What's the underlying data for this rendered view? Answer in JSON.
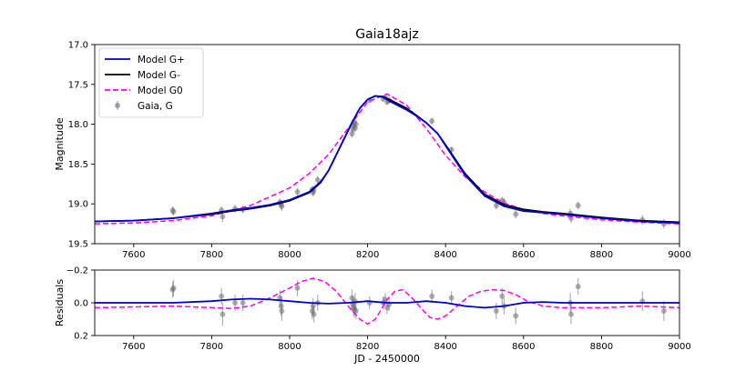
{
  "chart_data": [
    {
      "type": "line",
      "title": "Gaia18ajz",
      "xlabel": "",
      "ylabel": "Magnitude",
      "xlim": [
        7500,
        9000
      ],
      "ylim": [
        19.5,
        17.0
      ],
      "y_inverted": true,
      "x_ticks": [
        "7600",
        "7800",
        "8000",
        "8200",
        "8400",
        "8600",
        "8800",
        "9000"
      ],
      "x_tick_values": [
        7600,
        7800,
        8000,
        8200,
        8400,
        8600,
        8800,
        9000
      ],
      "y_ticks": [
        "17.0",
        "17.5",
        "18.0",
        "18.5",
        "19.0",
        "19.5"
      ],
      "y_tick_values": [
        17.0,
        17.5,
        18.0,
        18.5,
        19.0,
        19.5
      ],
      "legend_position": "top-left",
      "grid": false,
      "series": [
        {
          "name": "Model G+",
          "color": "#0000cc",
          "style": "solid",
          "x": [
            7500,
            7600,
            7700,
            7800,
            7850,
            7900,
            7950,
            8000,
            8050,
            8080,
            8100,
            8120,
            8140,
            8160,
            8180,
            8200,
            8220,
            8240,
            8260,
            8280,
            8300,
            8320,
            8350,
            8380,
            8400,
            8450,
            8500,
            8550,
            8600,
            8650,
            8700,
            8800,
            8900,
            9000
          ],
          "y": [
            19.22,
            19.21,
            19.18,
            19.12,
            19.08,
            19.05,
            19.01,
            18.95,
            18.85,
            18.72,
            18.58,
            18.38,
            18.18,
            17.98,
            17.8,
            17.69,
            17.645,
            17.66,
            17.72,
            17.77,
            17.82,
            17.88,
            17.98,
            18.12,
            18.27,
            18.64,
            18.9,
            19.03,
            19.09,
            19.11,
            19.13,
            19.18,
            19.22,
            19.24
          ]
        },
        {
          "name": "Model G-",
          "color": "#000000",
          "style": "solid",
          "x": [
            7500,
            7600,
            7700,
            7800,
            7850,
            7900,
            7950,
            8000,
            8050,
            8080,
            8100,
            8120,
            8140,
            8160,
            8180,
            8200,
            8220,
            8240,
            8260,
            8280,
            8300,
            8320,
            8350,
            8380,
            8400,
            8450,
            8500,
            8550,
            8600,
            8650,
            8700,
            8800,
            8900,
            9000
          ],
          "y": [
            19.22,
            19.21,
            19.18,
            19.13,
            19.09,
            19.06,
            19.02,
            18.96,
            18.86,
            18.73,
            18.58,
            18.38,
            18.18,
            17.98,
            17.8,
            17.69,
            17.645,
            17.655,
            17.7,
            17.75,
            17.8,
            17.87,
            17.98,
            18.12,
            18.26,
            18.62,
            18.88,
            19.01,
            19.07,
            19.1,
            19.12,
            19.17,
            19.21,
            19.23
          ]
        },
        {
          "name": "Model G0",
          "color": "#ff00ff",
          "style": "dashed",
          "x": [
            7500,
            7600,
            7700,
            7800,
            7900,
            8000,
            8050,
            8100,
            8150,
            8200,
            8250,
            8300,
            8350,
            8400,
            8450,
            8500,
            8550,
            8600,
            8650,
            8700,
            8800,
            8900,
            9000
          ],
          "y": [
            19.25,
            19.24,
            19.21,
            19.15,
            19.02,
            18.8,
            18.62,
            18.38,
            18.05,
            17.72,
            17.62,
            17.76,
            18.05,
            18.39,
            18.66,
            18.85,
            18.99,
            19.07,
            19.12,
            19.15,
            19.2,
            19.23,
            19.25
          ]
        },
        {
          "name": "Gaia, G",
          "type": "scatter",
          "color": "#707070",
          "x": [
            7700,
            7702,
            7825,
            7828,
            7860,
            7880,
            7975,
            7978,
            7980,
            8020,
            8058,
            8060,
            8062,
            8072,
            8160,
            8162,
            8164,
            8166,
            8168,
            8170,
            8205,
            8240,
            8245,
            8250,
            8255,
            8365,
            8415,
            8530,
            8545,
            8550,
            8580,
            8720,
            8722,
            8740,
            8905,
            8960
          ],
          "y": [
            19.08,
            19.1,
            19.08,
            19.16,
            19.06,
            19.07,
            18.98,
            19.01,
            19.03,
            18.85,
            18.82,
            18.86,
            18.83,
            18.7,
            18.12,
            18.06,
            18.02,
            17.98,
            18.05,
            18.0,
            17.7,
            17.68,
            17.66,
            17.72,
            17.7,
            17.96,
            18.32,
            19.02,
            18.96,
            18.98,
            19.13,
            19.12,
            19.18,
            19.02,
            19.2,
            19.25
          ],
          "yerr": [
            0.05,
            0.05,
            0.05,
            0.07,
            0.05,
            0.05,
            0.05,
            0.06,
            0.06,
            0.05,
            0.05,
            0.05,
            0.05,
            0.05,
            0.05,
            0.05,
            0.05,
            0.05,
            0.05,
            0.05,
            0.04,
            0.04,
            0.04,
            0.04,
            0.04,
            0.04,
            0.04,
            0.05,
            0.05,
            0.05,
            0.05,
            0.06,
            0.06,
            0.05,
            0.06,
            0.06
          ]
        }
      ]
    },
    {
      "type": "line",
      "title": "",
      "xlabel": "JD - 2450000",
      "ylabel": "Residuals",
      "xlim": [
        7500,
        9000
      ],
      "ylim": [
        0.2,
        -0.2
      ],
      "y_inverted": true,
      "x_ticks": [
        "7600",
        "7800",
        "8000",
        "8200",
        "8400",
        "8600",
        "8800",
        "9000"
      ],
      "x_tick_values": [
        7600,
        7800,
        8000,
        8200,
        8400,
        8600,
        8800,
        9000
      ],
      "y_ticks": [
        "−0.2",
        "0.0",
        "0.2"
      ],
      "y_tick_values": [
        -0.2,
        0.0,
        0.2
      ],
      "grid": false,
      "series": [
        {
          "name": "Model G+",
          "color": "#0000cc",
          "style": "solid",
          "x": [
            7500,
            7700,
            7800,
            7850,
            7900,
            7950,
            8000,
            8050,
            8100,
            8150,
            8200,
            8250,
            8300,
            8350,
            8400,
            8450,
            8500,
            8550,
            8600,
            8650,
            8700,
            8800,
            9000
          ],
          "y": [
            0.0,
            0.0,
            -0.01,
            -0.02,
            -0.025,
            -0.02,
            -0.01,
            0.0,
            0.005,
            0.0,
            -0.01,
            0.0,
            0.0,
            -0.01,
            0.0,
            0.02,
            0.03,
            0.02,
            0.0,
            -0.005,
            0.0,
            0.0,
            0.0
          ]
        },
        {
          "name": "Model G0",
          "color": "#ff00ff",
          "style": "dashed",
          "x": [
            7500,
            7600,
            7700,
            7800,
            7850,
            7900,
            7950,
            8000,
            8030,
            8060,
            8090,
            8120,
            8150,
            8180,
            8200,
            8220,
            8250,
            8270,
            8290,
            8310,
            8340,
            8360,
            8380,
            8400,
            8430,
            8460,
            8490,
            8520,
            8550,
            8580,
            8610,
            8650,
            8700,
            8800,
            8900,
            9000
          ],
          "y": [
            0.03,
            0.025,
            0.02,
            0.03,
            0.035,
            0.02,
            -0.03,
            -0.09,
            -0.13,
            -0.15,
            -0.13,
            -0.07,
            0.02,
            0.1,
            0.13,
            0.1,
            -0.02,
            -0.07,
            -0.08,
            -0.04,
            0.04,
            0.09,
            0.1,
            0.08,
            0.02,
            -0.04,
            -0.07,
            -0.08,
            -0.075,
            -0.05,
            -0.01,
            0.02,
            0.03,
            0.03,
            0.02,
            0.03
          ]
        },
        {
          "name": "Gaia, G",
          "type": "scatter",
          "color": "#707070",
          "x": [
            7700,
            7702,
            7825,
            7828,
            7860,
            7880,
            7975,
            7978,
            7980,
            8020,
            8058,
            8060,
            8062,
            8072,
            8160,
            8162,
            8164,
            8166,
            8168,
            8170,
            8205,
            8240,
            8245,
            8250,
            8255,
            8365,
            8415,
            8530,
            8545,
            8550,
            8580,
            8720,
            8722,
            8740,
            8905,
            8960
          ],
          "y": [
            -0.08,
            -0.09,
            -0.04,
            0.07,
            0.0,
            0.0,
            -0.03,
            0.02,
            0.05,
            -0.09,
            0.05,
            0.02,
            0.07,
            0.0,
            -0.03,
            0.01,
            0.03,
            0.04,
            -0.01,
            0.05,
            0.0,
            0.0,
            -0.02,
            0.03,
            0.01,
            -0.04,
            -0.03,
            0.05,
            -0.04,
            0.02,
            0.08,
            0.0,
            0.07,
            -0.1,
            -0.01,
            0.05
          ],
          "yerr": [
            0.05,
            0.05,
            0.05,
            0.07,
            0.05,
            0.05,
            0.05,
            0.06,
            0.06,
            0.05,
            0.05,
            0.05,
            0.05,
            0.05,
            0.05,
            0.05,
            0.05,
            0.05,
            0.05,
            0.05,
            0.04,
            0.04,
            0.04,
            0.04,
            0.04,
            0.04,
            0.04,
            0.05,
            0.05,
            0.05,
            0.05,
            0.06,
            0.06,
            0.05,
            0.06,
            0.06
          ]
        }
      ]
    }
  ]
}
